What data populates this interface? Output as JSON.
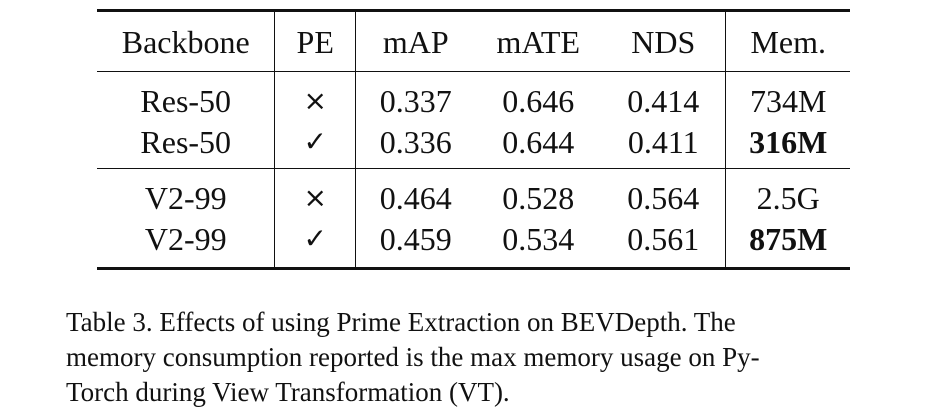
{
  "table": {
    "headers": [
      "Backbone",
      "PE",
      "mAP",
      "mATE",
      "NDS",
      "Mem."
    ],
    "groups": [
      [
        {
          "backbone": "Res-50",
          "pe": "×",
          "map": "0.337",
          "mate": "0.646",
          "nds": "0.414",
          "mem": "734M"
        },
        {
          "backbone": "Res-50",
          "pe": "✓",
          "map": "0.336",
          "mate": "0.644",
          "nds": "0.411",
          "mem": "316M"
        }
      ],
      [
        {
          "backbone": "V2-99",
          "pe": "×",
          "map": "0.464",
          "mate": "0.528",
          "nds": "0.564",
          "mem": "2.5G"
        },
        {
          "backbone": "V2-99",
          "pe": "✓",
          "map": "0.459",
          "mate": "0.534",
          "nds": "0.561",
          "mem": "875M"
        }
      ]
    ]
  },
  "caption": {
    "line1": "Table 3.  Effects of using Prime Extraction on BEVDepth.  The",
    "line2": "memory consumption reported is the max memory usage on Py-",
    "line3": "Torch during View Transformation (VT)."
  }
}
